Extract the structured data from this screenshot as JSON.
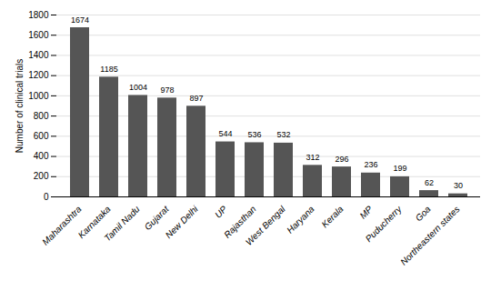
{
  "chart_data": {
    "type": "bar",
    "categories": [
      "Maharashtra",
      "Karnataka",
      "Tamil Nadu",
      "Gujarat",
      "New Delhi",
      "UP",
      "Rajasthan",
      "West Bengal",
      "Haryana",
      "Kerala",
      "MP",
      "Puducherry",
      "Goa",
      "Northeastern states"
    ],
    "values": [
      1674,
      1185,
      1004,
      978,
      897,
      544,
      536,
      532,
      312,
      296,
      236,
      199,
      62,
      30
    ],
    "color": "#555555",
    "ylabel": "Number of clinical trials",
    "ylim": [
      0,
      1800
    ],
    "yticks": [
      0,
      200,
      400,
      600,
      800,
      1000,
      1200,
      1400,
      1600,
      1800
    ],
    "grid": true,
    "data_labels": true
  }
}
